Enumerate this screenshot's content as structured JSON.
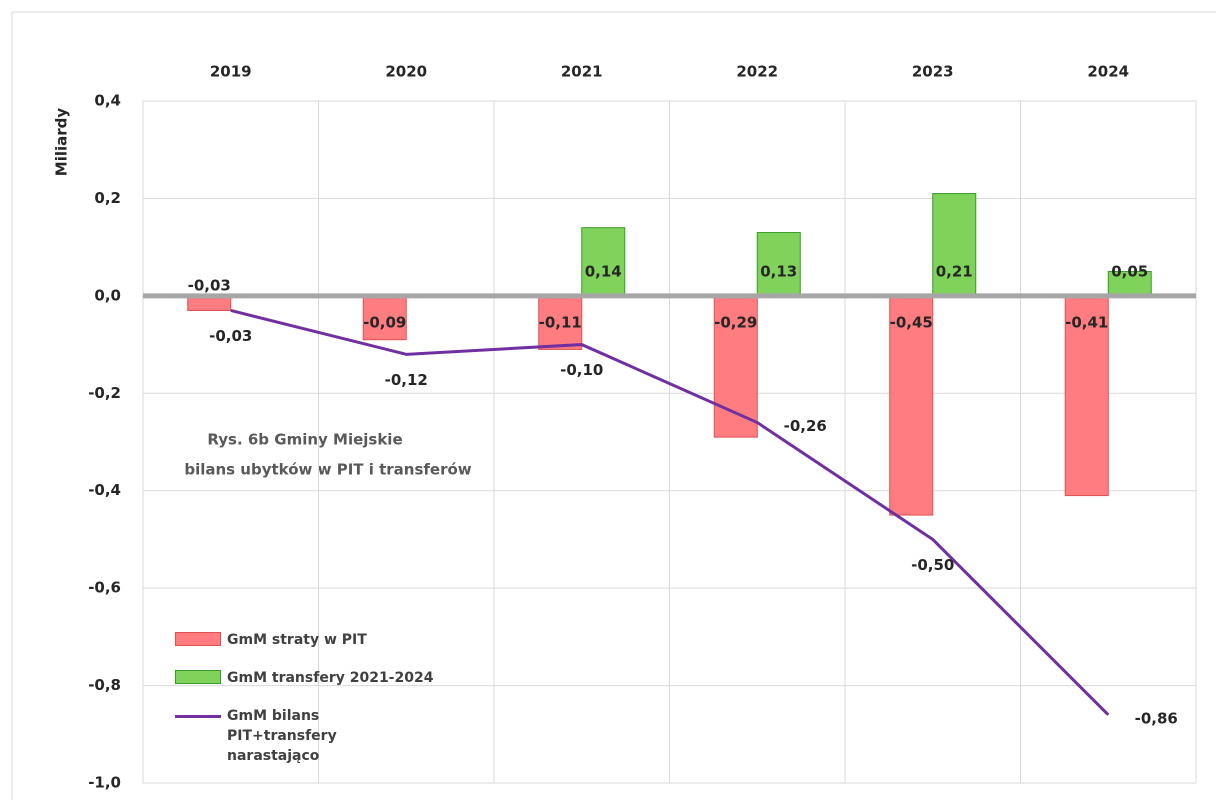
{
  "chart_data": {
    "type": "bar",
    "annotation": [
      "Rys. 6b   Gminy Miejskie",
      "bilans ubytków w PIT i transferów"
    ],
    "y_label": "Miliardy",
    "categories": [
      "2019",
      "2020",
      "2021",
      "2022",
      "2023",
      "2024"
    ],
    "series": [
      {
        "name": "GmM straty w PIT",
        "type": "bar",
        "color": "#ff7c80",
        "values": [
          -0.03,
          -0.09,
          -0.11,
          -0.29,
          -0.45,
          -0.41
        ],
        "value_labels": [
          "-0,03",
          "-0,09",
          "-0,11",
          "-0,29",
          "-0,45",
          "-0,41"
        ]
      },
      {
        "name": "GmM transfery 2021-2024",
        "type": "bar",
        "color": "#7fd35a",
        "values": [
          null,
          null,
          0.14,
          0.13,
          0.21,
          0.05
        ],
        "value_labels": [
          null,
          null,
          "0,14",
          "0,13",
          "0,21",
          "0,05"
        ]
      },
      {
        "name": "GmM bilans PIT+transfery narastająco",
        "type": "line",
        "color": "#7030a0",
        "values": [
          -0.03,
          -0.12,
          -0.1,
          -0.26,
          -0.5,
          -0.86
        ],
        "value_labels": [
          "-0,03",
          "-0,12",
          "-0,10",
          "-0,26",
          "-0,50",
          "-0,86"
        ]
      }
    ],
    "ylim": [
      -1.0,
      0.4
    ],
    "yticks": [
      {
        "value": -1.0,
        "label": "-1,0"
      },
      {
        "value": -0.8,
        "label": "-0,8"
      },
      {
        "value": -0.6,
        "label": "-0,6"
      },
      {
        "value": -0.4,
        "label": "-0,4"
      },
      {
        "value": -0.2,
        "label": "-0,2"
      },
      {
        "value": 0,
        "label": "0,0"
      },
      {
        "value": 0.2,
        "label": "0,2"
      },
      {
        "value": 0.4,
        "label": "0,4"
      }
    ],
    "grid": true,
    "legend": "lower left"
  }
}
